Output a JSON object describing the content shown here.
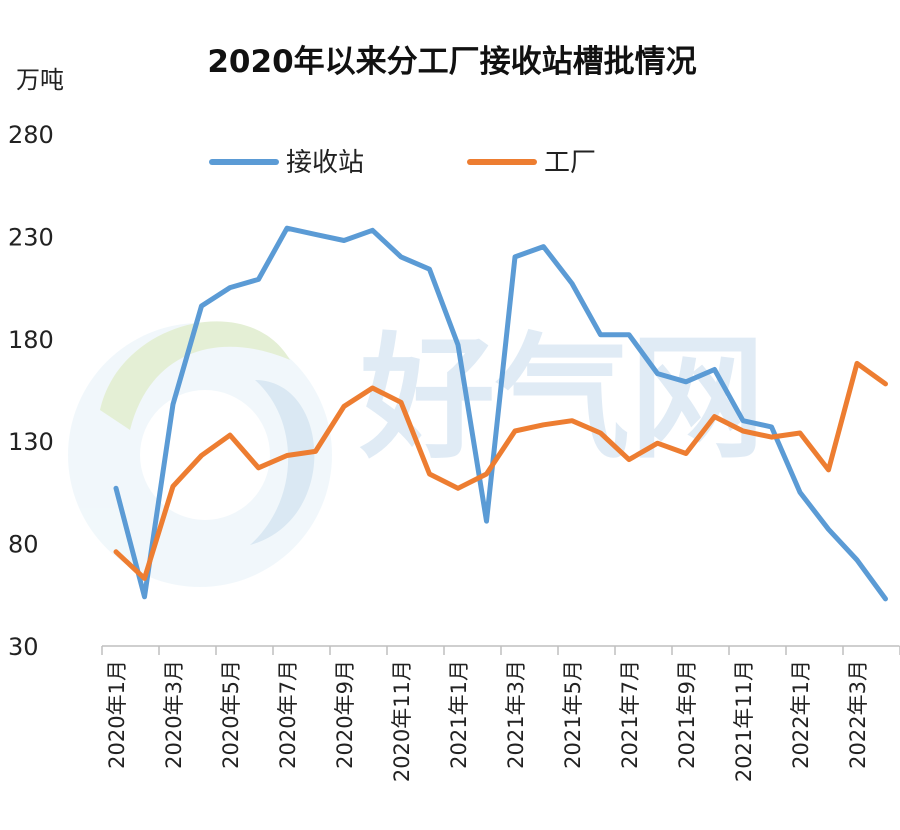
{
  "chart_data": {
    "type": "line",
    "title": "2020年以来分工厂接收站槽批情况",
    "y_unit_label": "万吨",
    "ylim": [
      30,
      280
    ],
    "y_ticks": [
      "280",
      "230",
      "180",
      "130",
      "80",
      "30"
    ],
    "y_tick_values": [
      280,
      230,
      180,
      130,
      80,
      30
    ],
    "x": [
      "2020年1月",
      "2020年2月",
      "2020年3月",
      "2020年4月",
      "2020年5月",
      "2020年6月",
      "2020年7月",
      "2020年8月",
      "2020年9月",
      "2020年10月",
      "2020年11月",
      "2020年12月",
      "2021年1月",
      "2021年2月",
      "2021年3月",
      "2021年4月",
      "2021年5月",
      "2021年6月",
      "2021年7月",
      "2021年8月",
      "2021年9月",
      "2021年10月",
      "2021年11月",
      "2021年12月",
      "2022年1月",
      "2022年2月",
      "2022年3月",
      "2022年4月"
    ],
    "x_tick_labels": [
      "2020年1月",
      "2020年3月",
      "2020年5月",
      "2020年7月",
      "2020年9月",
      "2020年11月",
      "2021年1月",
      "2021年3月",
      "2021年5月",
      "2021年7月",
      "2021年9月",
      "2021年11月",
      "2022年1月",
      "2022年3月"
    ],
    "series": [
      {
        "name": "接收站",
        "color": "#5b9bd5",
        "values": [
          107,
          54,
          148,
          196,
          205,
          209,
          234,
          231,
          228,
          233,
          220,
          214,
          177,
          91,
          220,
          225,
          207,
          182,
          182,
          163,
          159,
          165,
          140,
          137,
          105,
          87,
          72,
          53
        ]
      },
      {
        "name": "工厂",
        "color": "#ed7d31",
        "values": [
          76,
          63,
          108,
          123,
          133,
          117,
          123,
          125,
          147,
          156,
          149,
          114,
          107,
          114,
          135,
          138,
          140,
          134,
          121,
          129,
          124,
          142,
          135,
          132,
          134,
          116,
          168,
          158
        ]
      }
    ],
    "grid": false,
    "legend": "top",
    "watermark": "好气网"
  }
}
